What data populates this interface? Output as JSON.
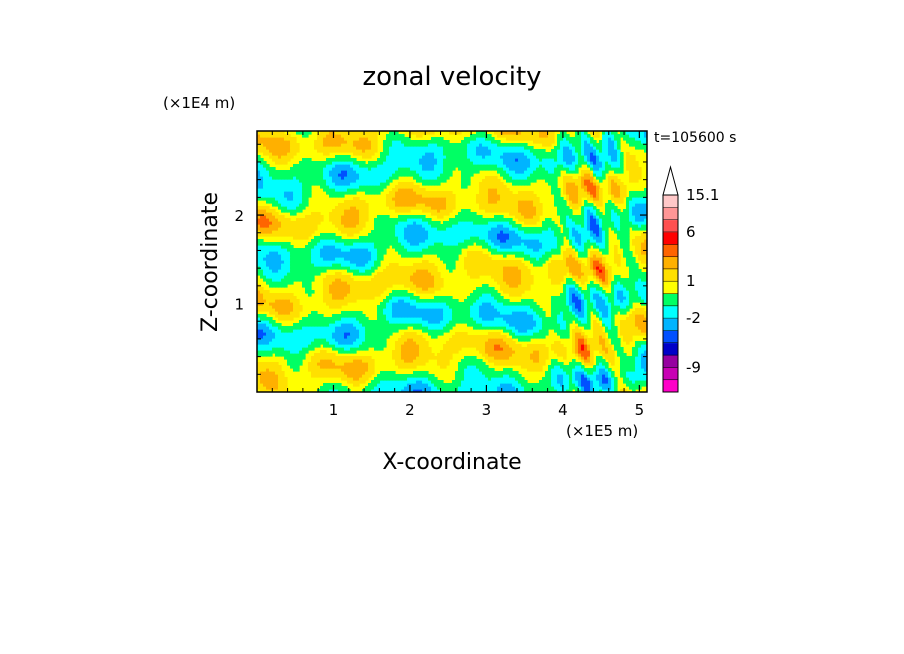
{
  "chart_data": {
    "type": "heatmap",
    "title": "zonal velocity",
    "xlabel": "X-coordinate",
    "ylabel": "Z-coordinate",
    "x_units": "(×1E5 m)",
    "y_units": "(×1E4 m)",
    "time_label": "t=105600 s",
    "xlim": [
      0,
      5.1
    ],
    "ylim": [
      0,
      2.95
    ],
    "x_ticks": [
      1,
      2,
      3,
      4,
      5
    ],
    "y_ticks": [
      1,
      2
    ],
    "x_tick_labels": [
      "1",
      "2",
      "3",
      "4",
      "5"
    ],
    "y_tick_labels": [
      "1",
      "2"
    ],
    "colorbar": {
      "levels": [
        -15,
        -12,
        -9,
        -6,
        -4,
        -3,
        -2,
        -1,
        0,
        1,
        2,
        3,
        4,
        6,
        9,
        12,
        15.1
      ],
      "colors": [
        "#ff00c8",
        "#c800b4",
        "#9600a0",
        "#0000c8",
        "#0050ff",
        "#00b4ff",
        "#00ffff",
        "#00ff64",
        "#ffff00",
        "#ffe000",
        "#ffb000",
        "#ff6400",
        "#ff0000",
        "#ff5050",
        "#ff9696",
        "#ffc8c8"
      ],
      "tick_labels": [
        "15.1",
        "6",
        "1",
        "-2",
        "-9"
      ],
      "tick_values": [
        15.1,
        6,
        1,
        -2,
        -9
      ],
      "extend": "max"
    }
  }
}
